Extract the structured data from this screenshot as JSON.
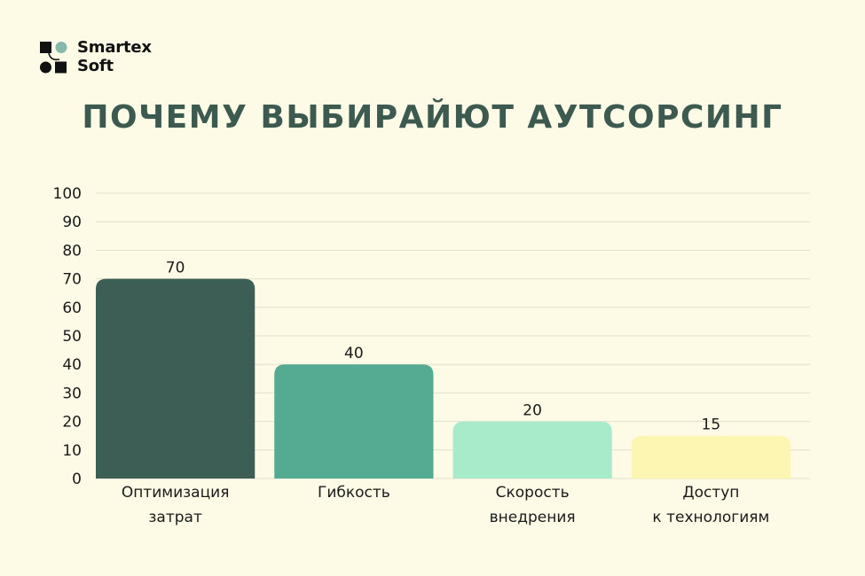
{
  "brand": {
    "line1": "Smartex",
    "line2": "Soft"
  },
  "chart_data": {
    "type": "bar",
    "title": "ПОЧЕМУ ВЫБИРАЙЮТ АУТСОРСИНГ",
    "categories": [
      [
        "Оптимизация",
        "затрат"
      ],
      [
        "Гибкость"
      ],
      [
        "Скорость",
        "внедрения"
      ],
      [
        "Доступ",
        "к технологиям"
      ]
    ],
    "values": [
      70,
      40,
      20,
      15
    ],
    "bar_colors": [
      "#3d5e55",
      "#55aa92",
      "#a8ebcb",
      "#fdf6b3"
    ],
    "ylim": [
      0,
      100
    ],
    "yticks": [
      0,
      10,
      20,
      30,
      40,
      50,
      60,
      70,
      80,
      90,
      100
    ],
    "grid": true,
    "data_labels": true
  },
  "colors": {
    "background": "#fdfbe6",
    "title": "#3d5a50",
    "grid": "#e2e0cc",
    "text": "#1a1a1a"
  }
}
